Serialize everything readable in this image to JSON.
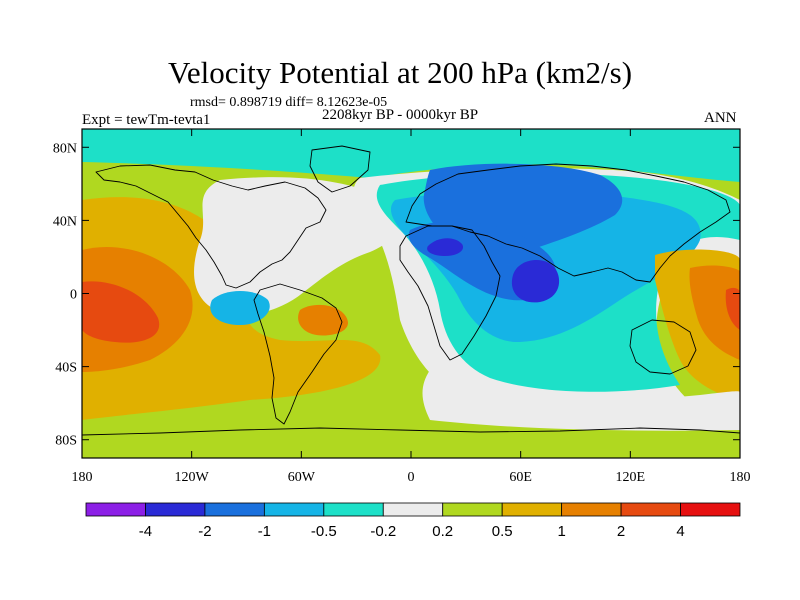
{
  "figure": {
    "title": "Velocity Potential at 200 hPa (km2/s)",
    "stats": "rmsd= 0.898719 diff= 8.12623e-05",
    "period": "2208kyr BP - 0000kyr BP",
    "experiment": "Expt = tewTm-tevta1",
    "season": "ANN"
  },
  "chart_data": {
    "type": "heatmap",
    "subtype": "filled-contour-map",
    "title": "Velocity Potential at 200 hPa (km2/s)",
    "xlabel": "",
    "ylabel": "",
    "xlim": [
      -180,
      180
    ],
    "ylim": [
      -90,
      90
    ],
    "x_ticks": [
      {
        "value": -180,
        "label": "180"
      },
      {
        "value": -120,
        "label": "120W"
      },
      {
        "value": -60,
        "label": "60W"
      },
      {
        "value": 0,
        "label": "0"
      },
      {
        "value": 60,
        "label": "60E"
      },
      {
        "value": 120,
        "label": "120E"
      },
      {
        "value": 180,
        "label": "180"
      }
    ],
    "y_ticks": [
      {
        "value": 80,
        "label": "80N"
      },
      {
        "value": 40,
        "label": "40N"
      },
      {
        "value": 0,
        "label": "0"
      },
      {
        "value": -40,
        "label": "40S"
      },
      {
        "value": -80,
        "label": "80S"
      }
    ],
    "colorbar": {
      "levels": [
        -4,
        -2,
        -1,
        -0.5,
        -0.2,
        0.2,
        0.5,
        1,
        2,
        4
      ],
      "labels": [
        "-4",
        "-2",
        "-1",
        "-0.5",
        "-0.2",
        "0.2",
        "0.5",
        "1",
        "2",
        "4"
      ],
      "colors": [
        "#8c1fe6",
        "#2a2ad6",
        "#1a70dd",
        "#15b4e6",
        "#1de0c8",
        "#ececec",
        "#b0d820",
        "#e0b000",
        "#e68000",
        "#e64a10",
        "#e61010"
      ]
    },
    "features": [
      {
        "region": "Indian Ocean near 60E, Equator",
        "value_range": "-4 to -2",
        "sign": "minimum"
      },
      {
        "region": "Eastern Mediterranean / Middle East",
        "value_range": "-4 to -2",
        "sign": "minimum"
      },
      {
        "region": "Central Pacific near 160W, 10S",
        "value_range": "2 to 4",
        "sign": "maximum"
      },
      {
        "region": "Western Pacific near 175E, Equator",
        "value_range": "2 to 4",
        "sign": "maximum"
      },
      {
        "region": "South Pacific / South America",
        "value_range": "1 to 2",
        "sign": "positive"
      },
      {
        "region": "Atlantic / Southern Ocean",
        "value_range": "0.2 to 0.5",
        "sign": "positive"
      },
      {
        "region": "Eurasia / Indian Ocean broad",
        "value_range": "-1 to -0.2",
        "sign": "negative"
      }
    ]
  }
}
